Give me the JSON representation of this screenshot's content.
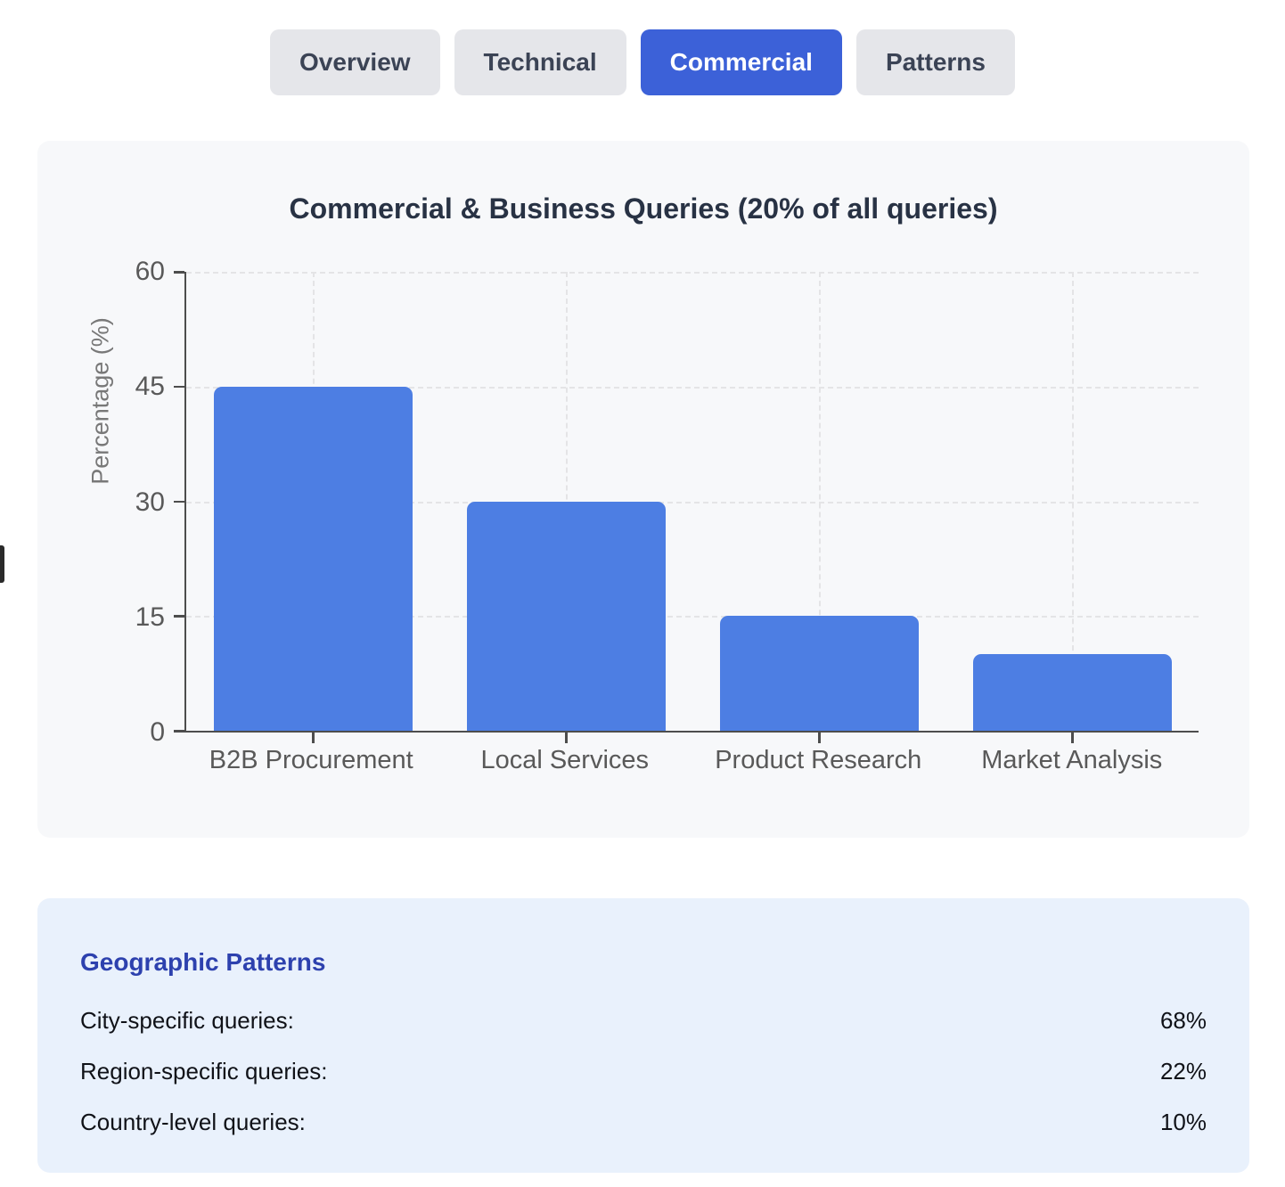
{
  "colors": {
    "active_tab_blue": "#3c61d8",
    "bar_blue": "#4d7ee3",
    "geo_heading_blue": "#2d41ae",
    "chart_card_bg": "#f7f8fa",
    "geo_card_bg": "#e9f1fc"
  },
  "tabs": [
    {
      "label": "Overview",
      "active": false
    },
    {
      "label": "Technical",
      "active": false
    },
    {
      "label": "Commercial",
      "active": true
    },
    {
      "label": "Patterns",
      "active": false
    }
  ],
  "chart_data": {
    "type": "bar",
    "title": "Commercial & Business Queries (20% of all queries)",
    "categories": [
      "B2B Procurement",
      "Local Services",
      "Product Research",
      "Market Analysis"
    ],
    "values": [
      45,
      30,
      15,
      10
    ],
    "xlabel": "",
    "ylabel": "Percentage (%)",
    "ylim": [
      0,
      60
    ],
    "yticks": [
      0,
      15,
      30,
      45,
      60
    ],
    "grid": true,
    "legend": false,
    "bar_color": "#4d7ee3"
  },
  "geographic_patterns": {
    "heading": "Geographic Patterns",
    "rows": [
      {
        "label": "City-specific queries:",
        "value": "68%"
      },
      {
        "label": "Region-specific queries:",
        "value": "22%"
      },
      {
        "label": "Country-level queries:",
        "value": "10%"
      }
    ]
  }
}
